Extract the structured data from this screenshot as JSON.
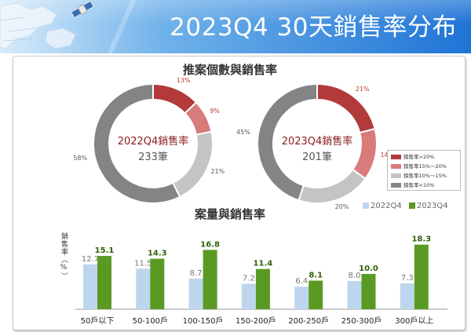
{
  "banner": {
    "title": "2023Q4 30天銷售率分布"
  },
  "donut_section": {
    "title": "推案個數與銷售率"
  },
  "bar_section": {
    "title": "案量與銷售率",
    "ylabel": "銷售率（%）"
  },
  "colors": {
    "sr_gt20": "#b23a3a",
    "sr_15_20": "#d97b7b",
    "sr_10_15": "#c4c4c4",
    "sr_lt10": "#848484",
    "bar_2022": "#bdd6ee",
    "bar_2023": "#5b9a22"
  },
  "chart_data": [
    {
      "type": "pie",
      "variant": "donut",
      "center_label": "2022Q4銷售率",
      "center_count": "233筆",
      "categories": [
        "銷售率>20%",
        "銷售率15%～20%",
        "銷售率10%～15%",
        "銷售率<10%"
      ],
      "values": [
        13,
        9,
        21,
        58
      ]
    },
    {
      "type": "pie",
      "variant": "donut",
      "center_label": "2023Q4銷售率",
      "center_count": "201筆",
      "categories": [
        "銷售率>20%",
        "銷售率15%～20%",
        "銷售率10%～15%",
        "銷售率<10%"
      ],
      "values": [
        21,
        14,
        20,
        45
      ]
    },
    {
      "type": "bar",
      "title": "案量與銷售率",
      "ylabel": "銷售率（%）",
      "categories": [
        "50戶以下",
        "50-100戶",
        "100-150戶",
        "150-200戶",
        "200-250戶",
        "250-300戶",
        "300戶以上"
      ],
      "series": [
        {
          "name": "2022Q4",
          "values": [
            12.7,
            11.5,
            8.7,
            7.2,
            6.4,
            8.0,
            7.3
          ]
        },
        {
          "name": "2023Q4",
          "values": [
            15.1,
            14.3,
            16.8,
            11.4,
            8.1,
            10.0,
            18.3
          ]
        }
      ],
      "ylim": [
        0,
        20
      ],
      "grid": false,
      "legend": "top-right"
    }
  ]
}
